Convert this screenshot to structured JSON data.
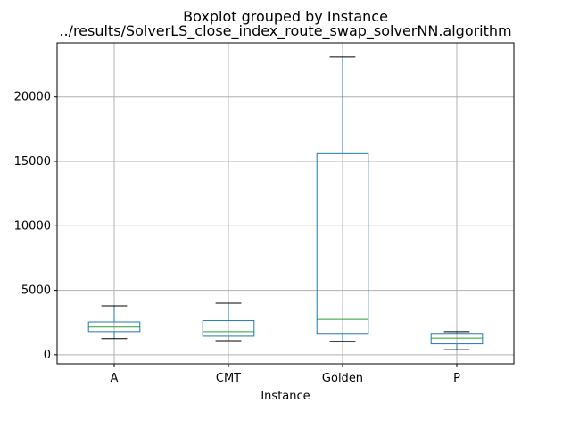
{
  "chart_data": {
    "type": "boxplot",
    "suptitle": "Boxplot grouped by Instance",
    "title": "../results/SolverLS_close_index_route_swap_solverNN.algorithm",
    "xlabel": "Instance",
    "ylabel": "",
    "categories": [
      "A",
      "CMT",
      "Golden",
      "P"
    ],
    "ylim": [
      -700,
      24200
    ],
    "yticks": [
      0,
      5000,
      10000,
      15000,
      20000
    ],
    "grid": true,
    "boxes": [
      {
        "category": "A",
        "whislo": 1250,
        "q1": 1800,
        "med": 2150,
        "q3": 2550,
        "whishi": 3800
      },
      {
        "category": "CMT",
        "whislo": 1100,
        "q1": 1450,
        "med": 1800,
        "q3": 2650,
        "whishi": 4000
      },
      {
        "category": "Golden",
        "whislo": 1050,
        "q1": 1600,
        "med": 2750,
        "q3": 15600,
        "whishi": 23100
      },
      {
        "category": "P",
        "whislo": 400,
        "q1": 850,
        "med": 1300,
        "q3": 1600,
        "whishi": 1800
      }
    ],
    "colors": {
      "box": "#1f77b4",
      "median": "#2ca02c",
      "whisker": "#1f77b4",
      "cap": "#000000",
      "grid": "#b0b0b0"
    }
  }
}
